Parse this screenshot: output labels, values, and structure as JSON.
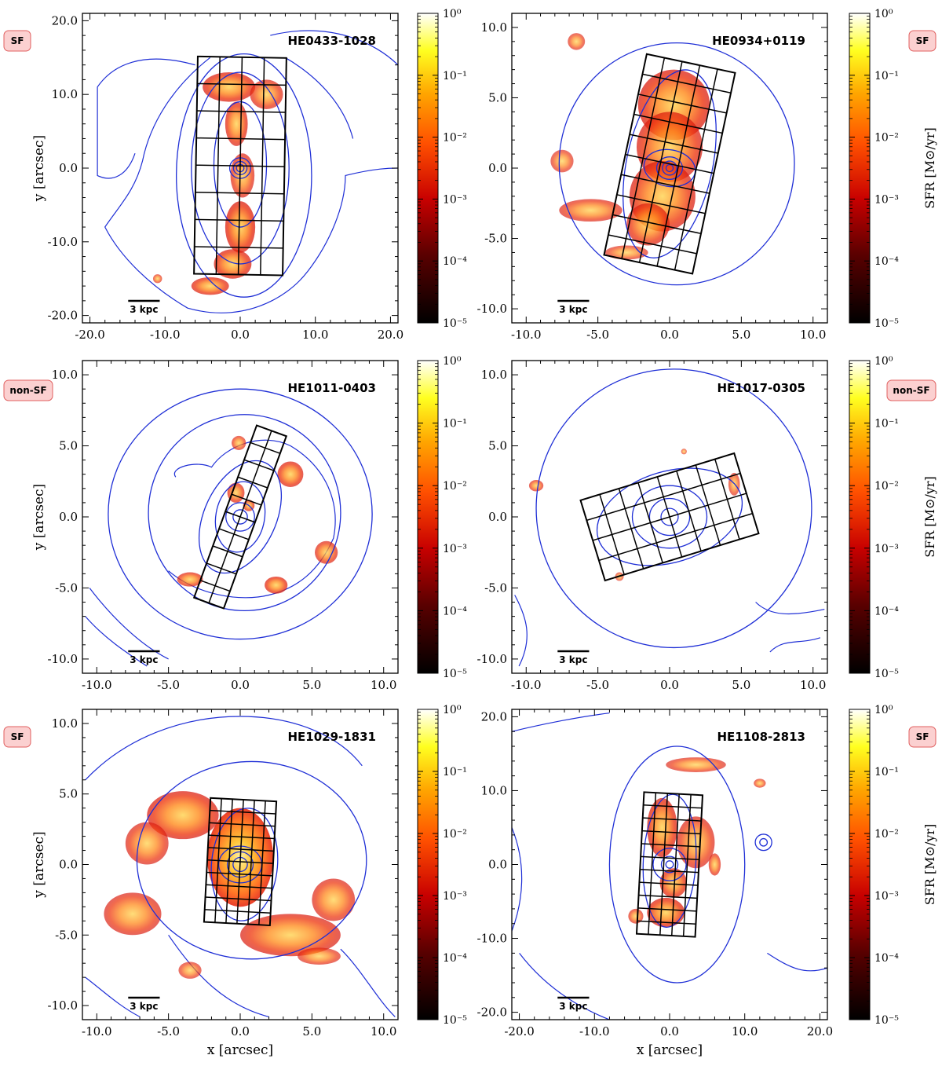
{
  "chart_data": [
    {
      "type": "heatmap",
      "galaxy": "HE0433-1028",
      "class_badge": "SF",
      "xlabel": "",
      "ylabel": "y [arcsec]",
      "xlim": [
        -21,
        21
      ],
      "ylim": [
        -21,
        21
      ],
      "x_ticks": [
        "-20.0",
        "-10.0",
        "0.0",
        "10.0",
        "20.0"
      ],
      "y_ticks": [
        "-20.0",
        "-10.0",
        "0.0",
        "10.0",
        "20.0"
      ],
      "x_tick_values": [
        -20,
        -10,
        0,
        10,
        20
      ],
      "y_tick_values": [
        -20,
        -10,
        0,
        10,
        20
      ],
      "scale_bar": "3 kpc",
      "colorbar_label": "",
      "colorbar_ticks": [
        "10⁰",
        "10⁻¹",
        "10⁻²",
        "10⁻³",
        "10⁻⁴",
        "10⁻⁵"
      ],
      "colorbar_range_log10": [
        -5,
        0
      ],
      "grid": {
        "center": [
          0,
          0.3
        ],
        "width": 11.8,
        "height": 29.5,
        "angle_deg": -1,
        "cols": 4,
        "rows": 8
      },
      "sf_blobs": [
        {
          "x": -1.5,
          "y": 11,
          "rx": 3.5,
          "ry": 2,
          "intensity": 0.55
        },
        {
          "x": 3.5,
          "y": 10,
          "rx": 2.2,
          "ry": 2,
          "intensity": 0.45
        },
        {
          "x": -0.5,
          "y": 6,
          "rx": 1.5,
          "ry": 3,
          "intensity": 0.5
        },
        {
          "x": 0.3,
          "y": -1,
          "rx": 1.6,
          "ry": 3,
          "intensity": 0.45
        },
        {
          "x": 0,
          "y": -8,
          "rx": 2,
          "ry": 3.5,
          "intensity": 0.6
        },
        {
          "x": -1,
          "y": -13,
          "rx": 2.5,
          "ry": 2,
          "intensity": 0.55
        },
        {
          "x": -4,
          "y": -16,
          "rx": 2.5,
          "ry": 1.2,
          "intensity": 0.5
        },
        {
          "x": -11,
          "y": -15,
          "rx": 0.6,
          "ry": 0.6,
          "intensity": 0.3
        }
      ],
      "contours": [
        {
          "x": 0,
          "y": 0,
          "rx": 0.5,
          "ry": 0.5,
          "angle": 0
        },
        {
          "x": 0,
          "y": 0,
          "rx": 0.9,
          "ry": 0.9,
          "angle": 0
        },
        {
          "x": 0,
          "y": 0,
          "rx": 1.4,
          "ry": 1.4,
          "angle": 0
        },
        {
          "x": 0,
          "y": 0.5,
          "rx": 3.5,
          "ry": 8.5,
          "angle": 0
        },
        {
          "x": 0,
          "y": 0,
          "rx": 6.5,
          "ry": 13,
          "angle": 0
        },
        {
          "x": 0.5,
          "y": -1,
          "rx": 9,
          "ry": 16.5,
          "angle": 0
        }
      ],
      "arms": [
        "M -4 15 C -9 11 -12 6 -13 1 C -14 -3 -16 -5 -18 -8 C -16 -12 -12 -16 -7 -19 C 0 -21 6 -18 9 -14 C 12 -10 14 -5 14 -1 C 18 0 20 0 21 0",
        "M -6 14 C -13 16 -17 14 -19 11 L -19 -1 C -17 -2 -15 -1 -14 2",
        "M 4 18 C 12 20 18 17 21 14",
        "M 15 4 C 14 8 11 12 6 15"
      ]
    },
    {
      "type": "heatmap",
      "galaxy": "HE0934+0119",
      "class_badge": "SF",
      "xlabel": "",
      "ylabel": "",
      "xlim": [
        -11,
        11
      ],
      "ylim": [
        -11,
        11
      ],
      "x_ticks": [
        "-10.0",
        "-5.0",
        "0.0",
        "5.0",
        "10.0"
      ],
      "y_ticks": [
        "-10.0",
        "-5.0",
        "0.0",
        "5.0",
        "10.0"
      ],
      "x_tick_values": [
        -10,
        -5,
        0,
        5,
        10
      ],
      "y_tick_values": [
        -10,
        -5,
        0,
        5,
        10
      ],
      "scale_bar": "3 kpc",
      "colorbar_label": "SFR [M⊙/yr]",
      "colorbar_ticks": [
        "10⁰",
        "10⁻¹",
        "10⁻²",
        "10⁻³",
        "10⁻⁴",
        "10⁻⁵"
      ],
      "colorbar_range_log10": [
        -5,
        0
      ],
      "grid": {
        "center": [
          0,
          0.3
        ],
        "width": 6.3,
        "height": 14.6,
        "angle_deg": -12,
        "cols": 5,
        "rows": 10
      },
      "sf_blobs": [
        {
          "x": 0.3,
          "y": 4.5,
          "rx": 2.5,
          "ry": 2.5,
          "intensity": 0.6
        },
        {
          "x": 0,
          "y": 1.5,
          "rx": 2.3,
          "ry": 2.5,
          "intensity": 0.55
        },
        {
          "x": -0.5,
          "y": -2,
          "rx": 2.3,
          "ry": 2.5,
          "intensity": 0.55
        },
        {
          "x": -1.5,
          "y": -4,
          "rx": 1.5,
          "ry": 1.5,
          "intensity": 0.5
        },
        {
          "x": -7.5,
          "y": 0.5,
          "rx": 0.8,
          "ry": 0.8,
          "intensity": 0.3
        },
        {
          "x": -5.5,
          "y": -3,
          "rx": 2.2,
          "ry": 0.8,
          "intensity": 0.4
        },
        {
          "x": -3,
          "y": -6,
          "rx": 1.5,
          "ry": 0.5,
          "intensity": 0.3
        },
        {
          "x": -6.5,
          "y": 9,
          "rx": 0.6,
          "ry": 0.6,
          "intensity": 0.3
        }
      ],
      "contours": [
        {
          "x": 0,
          "y": 0,
          "rx": 0.25,
          "ry": 0.25,
          "angle": 0
        },
        {
          "x": 0,
          "y": 0,
          "rx": 0.5,
          "ry": 0.5,
          "angle": 0
        },
        {
          "x": 0,
          "y": 0,
          "rx": 0.9,
          "ry": 0.8,
          "angle": 0
        },
        {
          "x": 0,
          "y": 0,
          "rx": 1.8,
          "ry": 1.3,
          "angle": -10
        },
        {
          "x": 0,
          "y": 0.3,
          "rx": 3,
          "ry": 6.8,
          "angle": -12
        },
        {
          "x": 0.5,
          "y": 0.3,
          "rx": 8.2,
          "ry": 8.6,
          "angle": 0
        }
      ],
      "arms": []
    },
    {
      "type": "heatmap",
      "galaxy": "HE1011-0403",
      "class_badge": "non-SF",
      "xlabel": "",
      "ylabel": "y [arcsec]",
      "xlim": [
        -11,
        11
      ],
      "ylim": [
        -11,
        11
      ],
      "x_ticks": [
        "-10.0",
        "-5.0",
        "0.0",
        "5.0",
        "10.0"
      ],
      "y_ticks": [
        "-10.0",
        "-5.0",
        "0.0",
        "5.0",
        "10.0"
      ],
      "x_tick_values": [
        -10,
        -5,
        0,
        5,
        10
      ],
      "y_tick_values": [
        -10,
        -5,
        0,
        5,
        10
      ],
      "scale_bar": "3 kpc",
      "colorbar_label": "",
      "colorbar_ticks": [
        "10⁰",
        "10⁻¹",
        "10⁻²",
        "10⁻³",
        "10⁻⁴",
        "10⁻⁵"
      ],
      "colorbar_range_log10": [
        -5,
        0
      ],
      "grid": {
        "center": [
          0,
          0
        ],
        "width": 2.2,
        "height": 12.9,
        "angle_deg": -20,
        "cols": 2,
        "rows": 10
      },
      "sf_blobs": [
        {
          "x": 3.5,
          "y": 3,
          "rx": 0.9,
          "ry": 0.9,
          "intensity": 0.5
        },
        {
          "x": -0.3,
          "y": 1.7,
          "rx": 0.6,
          "ry": 0.7,
          "intensity": 0.45
        },
        {
          "x": 0.6,
          "y": 0.8,
          "rx": 0.4,
          "ry": 0.4,
          "intensity": 0.45
        },
        {
          "x": 6,
          "y": -2.5,
          "rx": 0.8,
          "ry": 0.8,
          "intensity": 0.45
        },
        {
          "x": -3.5,
          "y": -4.4,
          "rx": 0.9,
          "ry": 0.5,
          "intensity": 0.45
        },
        {
          "x": 2.5,
          "y": -4.8,
          "rx": 0.8,
          "ry": 0.6,
          "intensity": 0.5
        },
        {
          "x": -0.1,
          "y": 5.2,
          "rx": 0.5,
          "ry": 0.5,
          "intensity": 0.35
        },
        {
          "x": -9.5,
          "y": 0.5,
          "rx": 0,
          "ry": 0,
          "intensity": 0
        }
      ],
      "contours": [
        {
          "x": 0,
          "y": 0,
          "rx": 0.5,
          "ry": 0.5,
          "angle": 0
        },
        {
          "x": 0,
          "y": 0,
          "rx": 1,
          "ry": 1,
          "angle": 0
        },
        {
          "x": 0,
          "y": 0,
          "rx": 1.7,
          "ry": 2.5,
          "angle": -10
        },
        {
          "x": 0,
          "y": 0,
          "rx": 2.5,
          "ry": 4.2,
          "angle": -25
        },
        {
          "x": 0.3,
          "y": 0.3,
          "rx": 6.7,
          "ry": 6.9,
          "angle": 0
        },
        {
          "x": 0,
          "y": 0.2,
          "rx": 9.2,
          "ry": 8.8,
          "angle": 0
        }
      ],
      "arms": [
        "M -4.5 2.8 C -5 3.5 -3 4 -2 3.5 C -1 5 1.5 6 3.5 5 C 6 3.5 7 1 6.5 -1.5 C 5.5 -3.8 4 -5 2 -5.5 C 0 -6 -3 -5.5 -5 -3.8",
        "M -10.5 -5 C -9 -7 -7 -9 -5 -10",
        "M -10.8 -7 C -9.5 -8.5 -8 -9.5 -6.5 -10.5"
      ]
    },
    {
      "type": "heatmap",
      "galaxy": "HE1017-0305",
      "class_badge": "non-SF",
      "xlabel": "",
      "ylabel": "",
      "xlim": [
        -11,
        11
      ],
      "ylim": [
        -11,
        11
      ],
      "x_ticks": [
        "-10.0",
        "-5.0",
        "0.0",
        "5.0",
        "10.0"
      ],
      "y_ticks": [
        "-10.0",
        "-5.0",
        "0.0",
        "5.0",
        "10.0"
      ],
      "x_tick_values": [
        -10,
        -5,
        0,
        5,
        10
      ],
      "y_tick_values": [
        -10,
        -5,
        0,
        5,
        10
      ],
      "scale_bar": "3 kpc",
      "colorbar_label": "SFR [M⊙/yr]",
      "colorbar_ticks": [
        "10⁰",
        "10⁻¹",
        "10⁻²",
        "10⁻³",
        "10⁻⁴",
        "10⁻⁵"
      ],
      "colorbar_range_log10": [
        -5,
        0
      ],
      "grid": {
        "center": [
          0,
          0
        ],
        "width": 11.2,
        "height": 5.9,
        "angle_deg": 17,
        "cols": 8,
        "rows": 4
      },
      "sf_blobs": [
        {
          "x": -9.3,
          "y": 2.2,
          "rx": 0.5,
          "ry": 0.4,
          "intensity": 0.35
        },
        {
          "x": 4.5,
          "y": 2.3,
          "rx": 0.4,
          "ry": 0.8,
          "intensity": 0.3
        },
        {
          "x": -3.5,
          "y": -4.2,
          "rx": 0.3,
          "ry": 0.3,
          "intensity": 0.2
        },
        {
          "x": 1,
          "y": 4.6,
          "rx": 0.2,
          "ry": 0.2,
          "intensity": 0.2
        }
      ],
      "contours": [
        {
          "x": 0,
          "y": 0,
          "rx": 0.6,
          "ry": 0.6,
          "angle": 0
        },
        {
          "x": 0,
          "y": 0,
          "rx": 1.4,
          "ry": 1.3,
          "angle": 0
        },
        {
          "x": 0,
          "y": 0,
          "rx": 2.6,
          "ry": 2.2,
          "angle": 0
        },
        {
          "x": 0,
          "y": 0,
          "rx": 5.2,
          "ry": 3.2,
          "angle": 17
        },
        {
          "x": 0.3,
          "y": 0.6,
          "rx": 9.6,
          "ry": 9.8,
          "angle": 0
        }
      ],
      "arms": [
        "M -10.8 -5.5 C -10 -7 -9.5 -8.5 -10.5 -10.5",
        "M 6 -6 C 7 -7 8.5 -7 10.8 -6.5",
        "M 7 -9.5 C 8 -8.5 9 -9 10.5 -8.5"
      ]
    },
    {
      "type": "heatmap",
      "galaxy": "HE1029-1831",
      "class_badge": "SF",
      "xlabel": "x [arcsec]",
      "ylabel": "y [arcsec]",
      "xlim": [
        -11,
        11
      ],
      "ylim": [
        -11,
        11
      ],
      "x_ticks": [
        "-10.0",
        "-5.0",
        "0.0",
        "5.0",
        "10.0"
      ],
      "y_ticks": [
        "-10.0",
        "-5.0",
        "0.0",
        "5.0",
        "10.0"
      ],
      "x_tick_values": [
        -10,
        -5,
        0,
        5,
        10
      ],
      "y_tick_values": [
        -10,
        -5,
        0,
        5,
        10
      ],
      "scale_bar": "3 kpc",
      "colorbar_label": "",
      "colorbar_ticks": [
        "10⁰",
        "10⁻¹",
        "10⁻²",
        "10⁻³",
        "10⁻⁴",
        "10⁻⁵"
      ],
      "colorbar_range_log10": [
        -5,
        0
      ],
      "grid": {
        "center": [
          0,
          0.2
        ],
        "width": 4.6,
        "height": 8.8,
        "angle_deg": -3,
        "cols": 6,
        "rows": 10
      },
      "sf_blobs": [
        {
          "x": 0,
          "y": 0.5,
          "rx": 2.3,
          "ry": 3.5,
          "intensity": 0.85
        },
        {
          "x": -4,
          "y": 3.5,
          "rx": 2.5,
          "ry": 1.7,
          "intensity": 0.55
        },
        {
          "x": -6.5,
          "y": 1.5,
          "rx": 1.5,
          "ry": 1.5,
          "intensity": 0.45
        },
        {
          "x": 3.5,
          "y": -5,
          "rx": 3.5,
          "ry": 1.5,
          "intensity": 0.5
        },
        {
          "x": 6.5,
          "y": -2.5,
          "rx": 1.5,
          "ry": 1.5,
          "intensity": 0.45
        },
        {
          "x": -7.5,
          "y": -3.5,
          "rx": 2,
          "ry": 1.5,
          "intensity": 0.45
        },
        {
          "x": -3.5,
          "y": -7.5,
          "rx": 0.8,
          "ry": 0.6,
          "intensity": 0.3
        },
        {
          "x": 5.5,
          "y": -6.5,
          "rx": 1.5,
          "ry": 0.6,
          "intensity": 0.35
        }
      ],
      "contours": [
        {
          "x": 0,
          "y": 0,
          "rx": 0.5,
          "ry": 0.5,
          "angle": 0
        },
        {
          "x": 0,
          "y": 0,
          "rx": 0.9,
          "ry": 0.9,
          "angle": 0
        },
        {
          "x": 0,
          "y": 0,
          "rx": 1.5,
          "ry": 1.3,
          "angle": 0
        },
        {
          "x": 0.3,
          "y": 0,
          "rx": 2.3,
          "ry": 4,
          "angle": -5
        },
        {
          "x": 0.8,
          "y": 0.3,
          "rx": 8,
          "ry": 7,
          "angle": 0
        }
      ],
      "arms": [
        "M -10.8 6 C -8 9 -4 10.5 0 10.5 C 4 10.5 7 9 8.5 7",
        "M -5 -5 C -3 -8 -1 -10 2 -10.8",
        "M 7 -6 C 8.5 -7.5 9.5 -9.5 10.8 -10.8",
        "M -10.8 -8 C -9.5 -9 -8.5 -10 -7 -10.8"
      ]
    },
    {
      "type": "heatmap",
      "galaxy": "HE1108-2813",
      "class_badge": "SF",
      "xlabel": "x [arcsec]",
      "ylabel": "",
      "xlim": [
        -21,
        21
      ],
      "ylim": [
        -21,
        21
      ],
      "x_ticks": [
        "-20.0",
        "-10.0",
        "0.0",
        "10.0",
        "20.0"
      ],
      "y_ticks": [
        "-20.0",
        "-10.0",
        "0.0",
        "10.0",
        "20.0"
      ],
      "x_tick_values": [
        -20,
        -10,
        0,
        10,
        20
      ],
      "y_tick_values": [
        -20,
        -10,
        0,
        10,
        20
      ],
      "scale_bar": "3 kpc",
      "colorbar_label": "SFR [M⊙/yr]",
      "colorbar_ticks": [
        "10⁰",
        "10⁻¹",
        "10⁻²",
        "10⁻³",
        "10⁻⁴",
        "10⁻⁵"
      ],
      "colorbar_range_log10": [
        -5,
        0
      ],
      "grid": {
        "center": [
          0,
          0
        ],
        "width": 7.8,
        "height": 19.2,
        "angle_deg": -3,
        "cols": 5,
        "rows": 11
      },
      "sf_blobs": [
        {
          "x": -1,
          "y": 5,
          "rx": 2,
          "ry": 4,
          "intensity": 0.55
        },
        {
          "x": 3.5,
          "y": 3,
          "rx": 2.5,
          "ry": 3.5,
          "intensity": 0.45
        },
        {
          "x": 0.5,
          "y": -2.5,
          "rx": 1.8,
          "ry": 2,
          "intensity": 0.5
        },
        {
          "x": -0.5,
          "y": -6.5,
          "rx": 2.5,
          "ry": 2,
          "intensity": 0.55
        },
        {
          "x": 3.5,
          "y": 13.5,
          "rx": 4,
          "ry": 1,
          "intensity": 0.35
        },
        {
          "x": 12,
          "y": 11,
          "rx": 0.8,
          "ry": 0.6,
          "intensity": 0.3
        },
        {
          "x": 6,
          "y": 0,
          "rx": 0.8,
          "ry": 1.5,
          "intensity": 0.4
        },
        {
          "x": -4.5,
          "y": -7,
          "rx": 1,
          "ry": 1,
          "intensity": 0.35
        }
      ],
      "contours": [
        {
          "x": 0,
          "y": 0,
          "rx": 0.5,
          "ry": 0.5,
          "angle": 0
        },
        {
          "x": 0,
          "y": 0,
          "rx": 1.1,
          "ry": 1.1,
          "angle": 0
        },
        {
          "x": 0,
          "y": 0,
          "rx": 2.2,
          "ry": 2.2,
          "angle": 0
        },
        {
          "x": 0,
          "y": 0.5,
          "rx": 3.5,
          "ry": 9,
          "angle": -3
        },
        {
          "x": 1,
          "y": 0,
          "rx": 9,
          "ry": 16,
          "angle": 0
        },
        {
          "x": 12.5,
          "y": 3,
          "rx": 0.5,
          "ry": 0.5,
          "angle": 0
        },
        {
          "x": 12.5,
          "y": 3,
          "rx": 1.1,
          "ry": 1.1,
          "angle": 0
        }
      ],
      "arms": [
        "M -21 18 C -17 19 -12 20 -8 20.5",
        "M -20 -12 C -17 -16 -13 -19 -8 -21",
        "M 13 -12 C 16 -14 18 -15 21 -14",
        "M -21 5 C -19 0 -19.5 -5 -21 -9"
      ]
    }
  ]
}
